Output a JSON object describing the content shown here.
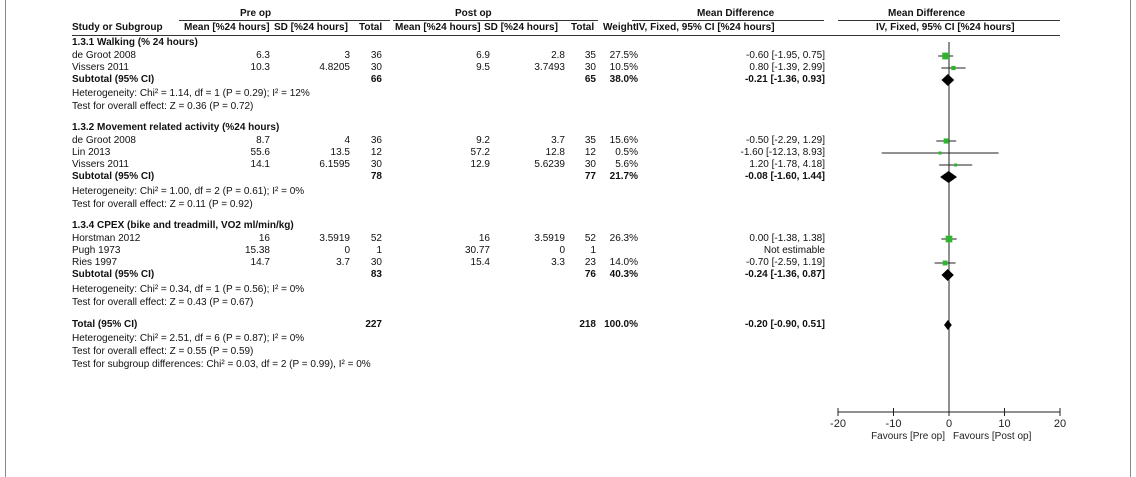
{
  "header": {
    "pre_op": "Pre op",
    "post_op": "Post op",
    "md_title": "Mean Difference",
    "md_plot_title": "Mean Difference",
    "col_study": "Study or Subgroup",
    "col_pre_mean": "Mean [%24 hours]",
    "col_pre_sd": "SD [%24 hours]",
    "col_pre_total": "Total",
    "col_post_mean": "Mean [%24 hours]",
    "col_post_sd": "SD [%24 hours]",
    "col_post_total": "Total",
    "col_weight": "Weight",
    "col_ci": "IV, Fixed, 95% CI [%24 hours]",
    "col_plot_ci": "IV, Fixed, 95% CI [%24 hours]"
  },
  "groups": [
    {
      "title": "1.3.1 Walking (% 24 hours)",
      "studies": [
        {
          "name": "de Groot 2008",
          "pre_mean": "6.3",
          "pre_sd": "3",
          "pre_total": "36",
          "post_mean": "6.9",
          "post_sd": "2.8",
          "post_total": "35",
          "weight": "27.5%",
          "ci": "-0.60 [-1.95, 0.75]"
        },
        {
          "name": "Vissers 2011",
          "pre_mean": "10.3",
          "pre_sd": "4.8205",
          "pre_total": "30",
          "post_mean": "9.5",
          "post_sd": "3.7493",
          "post_total": "30",
          "weight": "10.5%",
          "ci": "0.80 [-1.39, 2.99]"
        }
      ],
      "subtotal": {
        "label": "Subtotal (95% CI)",
        "pre_total": "66",
        "post_total": "65",
        "weight": "38.0%",
        "ci": "-0.21 [-1.36, 0.93]"
      },
      "heterogeneity": "Heterogeneity: Chi² = 1.14, df = 1 (P = 0.29); I² = 12%",
      "overall": "Test for overall effect: Z = 0.36 (P = 0.72)"
    },
    {
      "title": "1.3.2 Movement related activity (%24 hours)",
      "studies": [
        {
          "name": "de Groot 2008",
          "pre_mean": "8.7",
          "pre_sd": "4",
          "pre_total": "36",
          "post_mean": "9.2",
          "post_sd": "3.7",
          "post_total": "35",
          "weight": "15.6%",
          "ci": "-0.50 [-2.29, 1.29]"
        },
        {
          "name": "Lin 2013",
          "pre_mean": "55.6",
          "pre_sd": "13.5",
          "pre_total": "12",
          "post_mean": "57.2",
          "post_sd": "12.8",
          "post_total": "12",
          "weight": "0.5%",
          "ci": "-1.60 [-12.13, 8.93]"
        },
        {
          "name": "Vissers 2011",
          "pre_mean": "14.1",
          "pre_sd": "6.1595",
          "pre_total": "30",
          "post_mean": "12.9",
          "post_sd": "5.6239",
          "post_total": "30",
          "weight": "5.6%",
          "ci": "1.20 [-1.78, 4.18]"
        }
      ],
      "subtotal": {
        "label": "Subtotal (95% CI)",
        "pre_total": "78",
        "post_total": "77",
        "weight": "21.7%",
        "ci": "-0.08 [-1.60, 1.44]"
      },
      "heterogeneity": "Heterogeneity: Chi² = 1.00, df = 2 (P = 0.61); I² = 0%",
      "overall": "Test for overall effect: Z = 0.11 (P = 0.92)"
    },
    {
      "title": "1.3.4 CPEX (bike and treadmill, VO2 ml/min/kg)",
      "studies": [
        {
          "name": "Horstman 2012",
          "pre_mean": "16",
          "pre_sd": "3.5919",
          "pre_total": "52",
          "post_mean": "16",
          "post_sd": "3.5919",
          "post_total": "52",
          "weight": "26.3%",
          "ci": "0.00 [-1.38, 1.38]"
        },
        {
          "name": "Pugh 1973",
          "pre_mean": "15.38",
          "pre_sd": "0",
          "pre_total": "1",
          "post_mean": "30.77",
          "post_sd": "0",
          "post_total": "1",
          "weight": "",
          "ci": "Not estimable"
        },
        {
          "name": "Ries 1997",
          "pre_mean": "14.7",
          "pre_sd": "3.7",
          "pre_total": "30",
          "post_mean": "15.4",
          "post_sd": "3.3",
          "post_total": "23",
          "weight": "14.0%",
          "ci": "-0.70 [-2.59, 1.19]"
        }
      ],
      "subtotal": {
        "label": "Subtotal (95% CI)",
        "pre_total": "83",
        "post_total": "76",
        "weight": "40.3%",
        "ci": "-0.24 [-1.36, 0.87]"
      },
      "heterogeneity": "Heterogeneity: Chi² = 0.34, df = 1 (P = 0.56); I² = 0%",
      "overall": "Test for overall effect: Z = 0.43 (P = 0.67)"
    }
  ],
  "total": {
    "label": "Total (95% CI)",
    "pre_total": "227",
    "post_total": "218",
    "weight": "100.0%",
    "ci": "-0.20 [-0.90, 0.51]",
    "heterogeneity": "Heterogeneity: Chi² = 2.51, df = 6 (P = 0.87); I² = 0%",
    "overall": "Test for overall effect: Z = 0.55 (P = 0.59)",
    "subgroup": "Test for subgroup differences: Chi² = 0.03, df = 2 (P = 0.99), I² = 0%"
  },
  "colors": {
    "marker": "#2db52d",
    "diamond": "#000000",
    "line": "#222222"
  },
  "chart_data": {
    "type": "forest",
    "xlim": [
      -20,
      20
    ],
    "ticks": [
      -20,
      -10,
      0,
      10,
      20
    ],
    "tick_labels": [
      "-20",
      "-10",
      "0",
      "10",
      "20"
    ],
    "favours_left": "Favours [Pre op]",
    "favours_right": "Favours [Post op]",
    "rows": [
      {
        "kind": "study",
        "name": "de Groot 2008",
        "est": -0.6,
        "lo": -1.95,
        "hi": 0.75,
        "weight": 27.5
      },
      {
        "kind": "study",
        "name": "Vissers 2011",
        "est": 0.8,
        "lo": -1.39,
        "hi": 2.99,
        "weight": 10.5
      },
      {
        "kind": "subtotal",
        "name": "Subtotal (95% CI)",
        "est": -0.21,
        "lo": -1.36,
        "hi": 0.93
      },
      {
        "kind": "study",
        "name": "de Groot 2008",
        "est": -0.5,
        "lo": -2.29,
        "hi": 1.29,
        "weight": 15.6
      },
      {
        "kind": "study",
        "name": "Lin 2013",
        "est": -1.6,
        "lo": -12.13,
        "hi": 8.93,
        "weight": 0.5
      },
      {
        "kind": "study",
        "name": "Vissers 2011",
        "est": 1.2,
        "lo": -1.78,
        "hi": 4.18,
        "weight": 5.6
      },
      {
        "kind": "subtotal",
        "name": "Subtotal (95% CI)",
        "est": -0.08,
        "lo": -1.6,
        "hi": 1.44
      },
      {
        "kind": "study",
        "name": "Horstman 2012",
        "est": 0.0,
        "lo": -1.38,
        "hi": 1.38,
        "weight": 26.3
      },
      {
        "kind": "study",
        "name": "Ries 1997",
        "est": -0.7,
        "lo": -2.59,
        "hi": 1.19,
        "weight": 14.0
      },
      {
        "kind": "subtotal",
        "name": "Subtotal (95% CI)",
        "est": -0.24,
        "lo": -1.36,
        "hi": 0.87
      },
      {
        "kind": "total",
        "name": "Total (95% CI)",
        "est": -0.2,
        "lo": -0.9,
        "hi": 0.51
      }
    ]
  }
}
